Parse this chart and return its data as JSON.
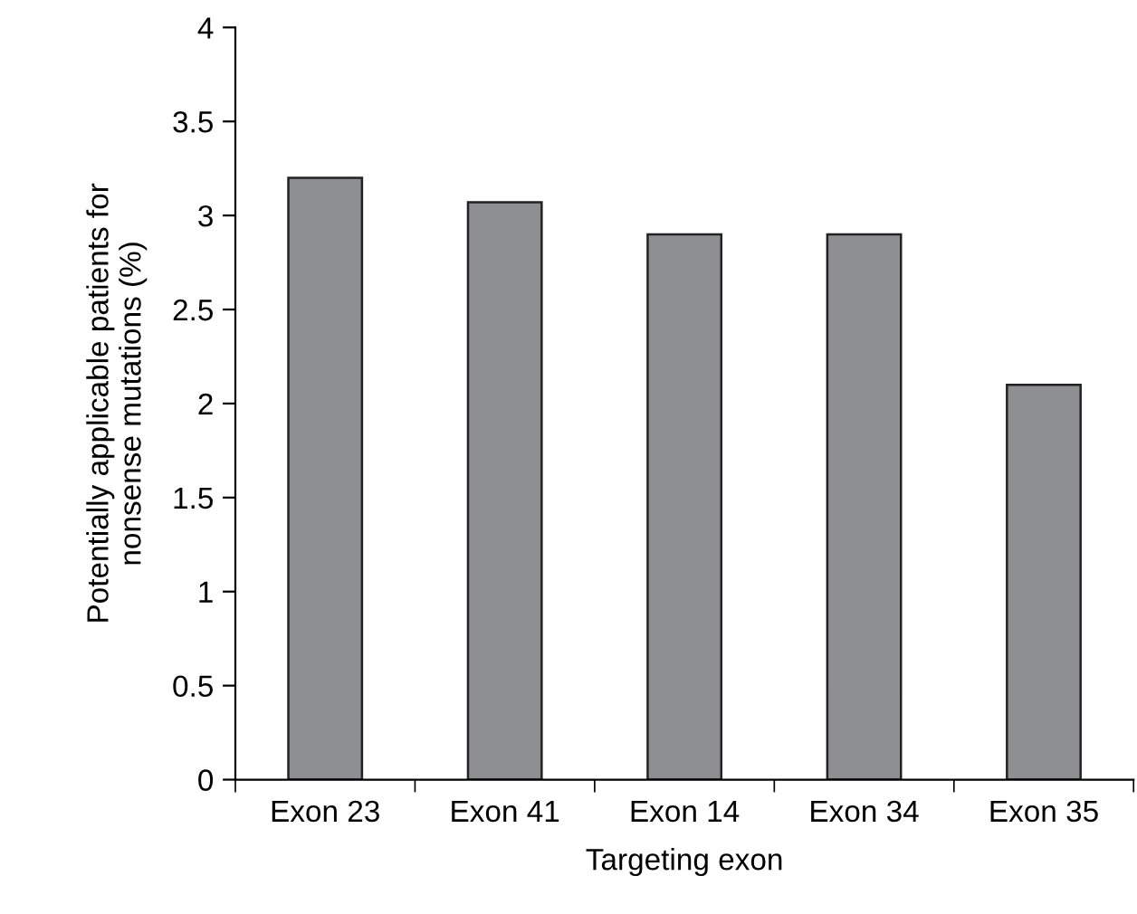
{
  "chart_data": {
    "type": "bar",
    "xlabel": "Targeting exon",
    "ylabel": "Potentially applicable patients for\nnonsense mutations (%)",
    "categories": [
      "Exon 23",
      "Exon 41",
      "Exon 14",
      "Exon 34",
      "Exon 35"
    ],
    "values": [
      3.2,
      3.07,
      2.9,
      2.9,
      2.1
    ],
    "color": "#8e8f93",
    "ylim": [
      0,
      4
    ],
    "yticks": [
      0,
      0.5,
      1,
      1.5,
      2,
      2.5,
      3,
      3.5,
      4
    ],
    "grid": false
  }
}
